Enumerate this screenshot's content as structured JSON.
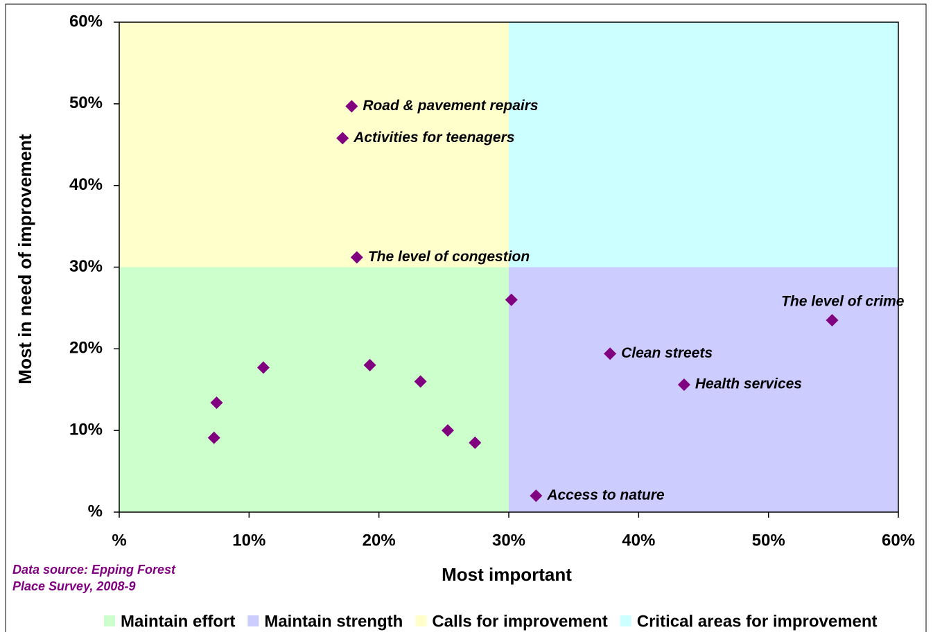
{
  "chart_data": {
    "type": "scatter",
    "x_label": "Most important",
    "y_label": "Most in need of improvement",
    "xlim": [
      0,
      60
    ],
    "ylim": [
      0,
      60
    ],
    "xticks": [
      {
        "value": 0,
        "label": "%"
      },
      {
        "value": 10,
        "label": "10%"
      },
      {
        "value": 20,
        "label": "20%"
      },
      {
        "value": 30,
        "label": "30%"
      },
      {
        "value": 40,
        "label": "40%"
      },
      {
        "value": 50,
        "label": "50%"
      },
      {
        "value": 60,
        "label": "60%"
      }
    ],
    "yticks": [
      {
        "value": 0,
        "label": "%"
      },
      {
        "value": 10,
        "label": "10%"
      },
      {
        "value": 20,
        "label": "20%"
      },
      {
        "value": 30,
        "label": "30%"
      },
      {
        "value": 40,
        "label": "40%"
      },
      {
        "value": 50,
        "label": "50%"
      },
      {
        "value": 60,
        "label": "60%"
      }
    ],
    "quadrants": [
      {
        "name": "Maintain effort",
        "color": "#ccffcc",
        "x": [
          0,
          30
        ],
        "y": [
          0,
          30
        ]
      },
      {
        "name": "Maintain strength",
        "color": "#ccccff",
        "x": [
          30,
          60
        ],
        "y": [
          0,
          30
        ]
      },
      {
        "name": "Calls for improvement",
        "color": "#ffffcc",
        "x": [
          0,
          30
        ],
        "y": [
          30,
          60
        ]
      },
      {
        "name": "Critical areas for improvement",
        "color": "#ccffff",
        "x": [
          30,
          60
        ],
        "y": [
          30,
          60
        ]
      }
    ],
    "series": [
      {
        "color": "#800080",
        "x": [
          17.9,
          17.2,
          18.3,
          30.2,
          54.9,
          37.8,
          43.5,
          32.1,
          7.5,
          7.3,
          11.1,
          19.3,
          23.2,
          25.3,
          27.4
        ],
        "values": [
          49.7,
          45.8,
          31.2,
          26.0,
          23.5,
          19.4,
          15.6,
          2.0,
          13.4,
          9.1,
          17.7,
          18.0,
          16.0,
          10.0,
          8.5
        ],
        "labels": [
          "Road & pavement repairs",
          "Activities for teenagers",
          "The level of congestion",
          null,
          "The level of crime",
          "Clean streets",
          "Health services",
          "Access to nature",
          null,
          null,
          null,
          null,
          null,
          null,
          null
        ]
      }
    ],
    "source": [
      "Data source:  Epping Forest",
      "Place Survey, 2008-9"
    ]
  }
}
